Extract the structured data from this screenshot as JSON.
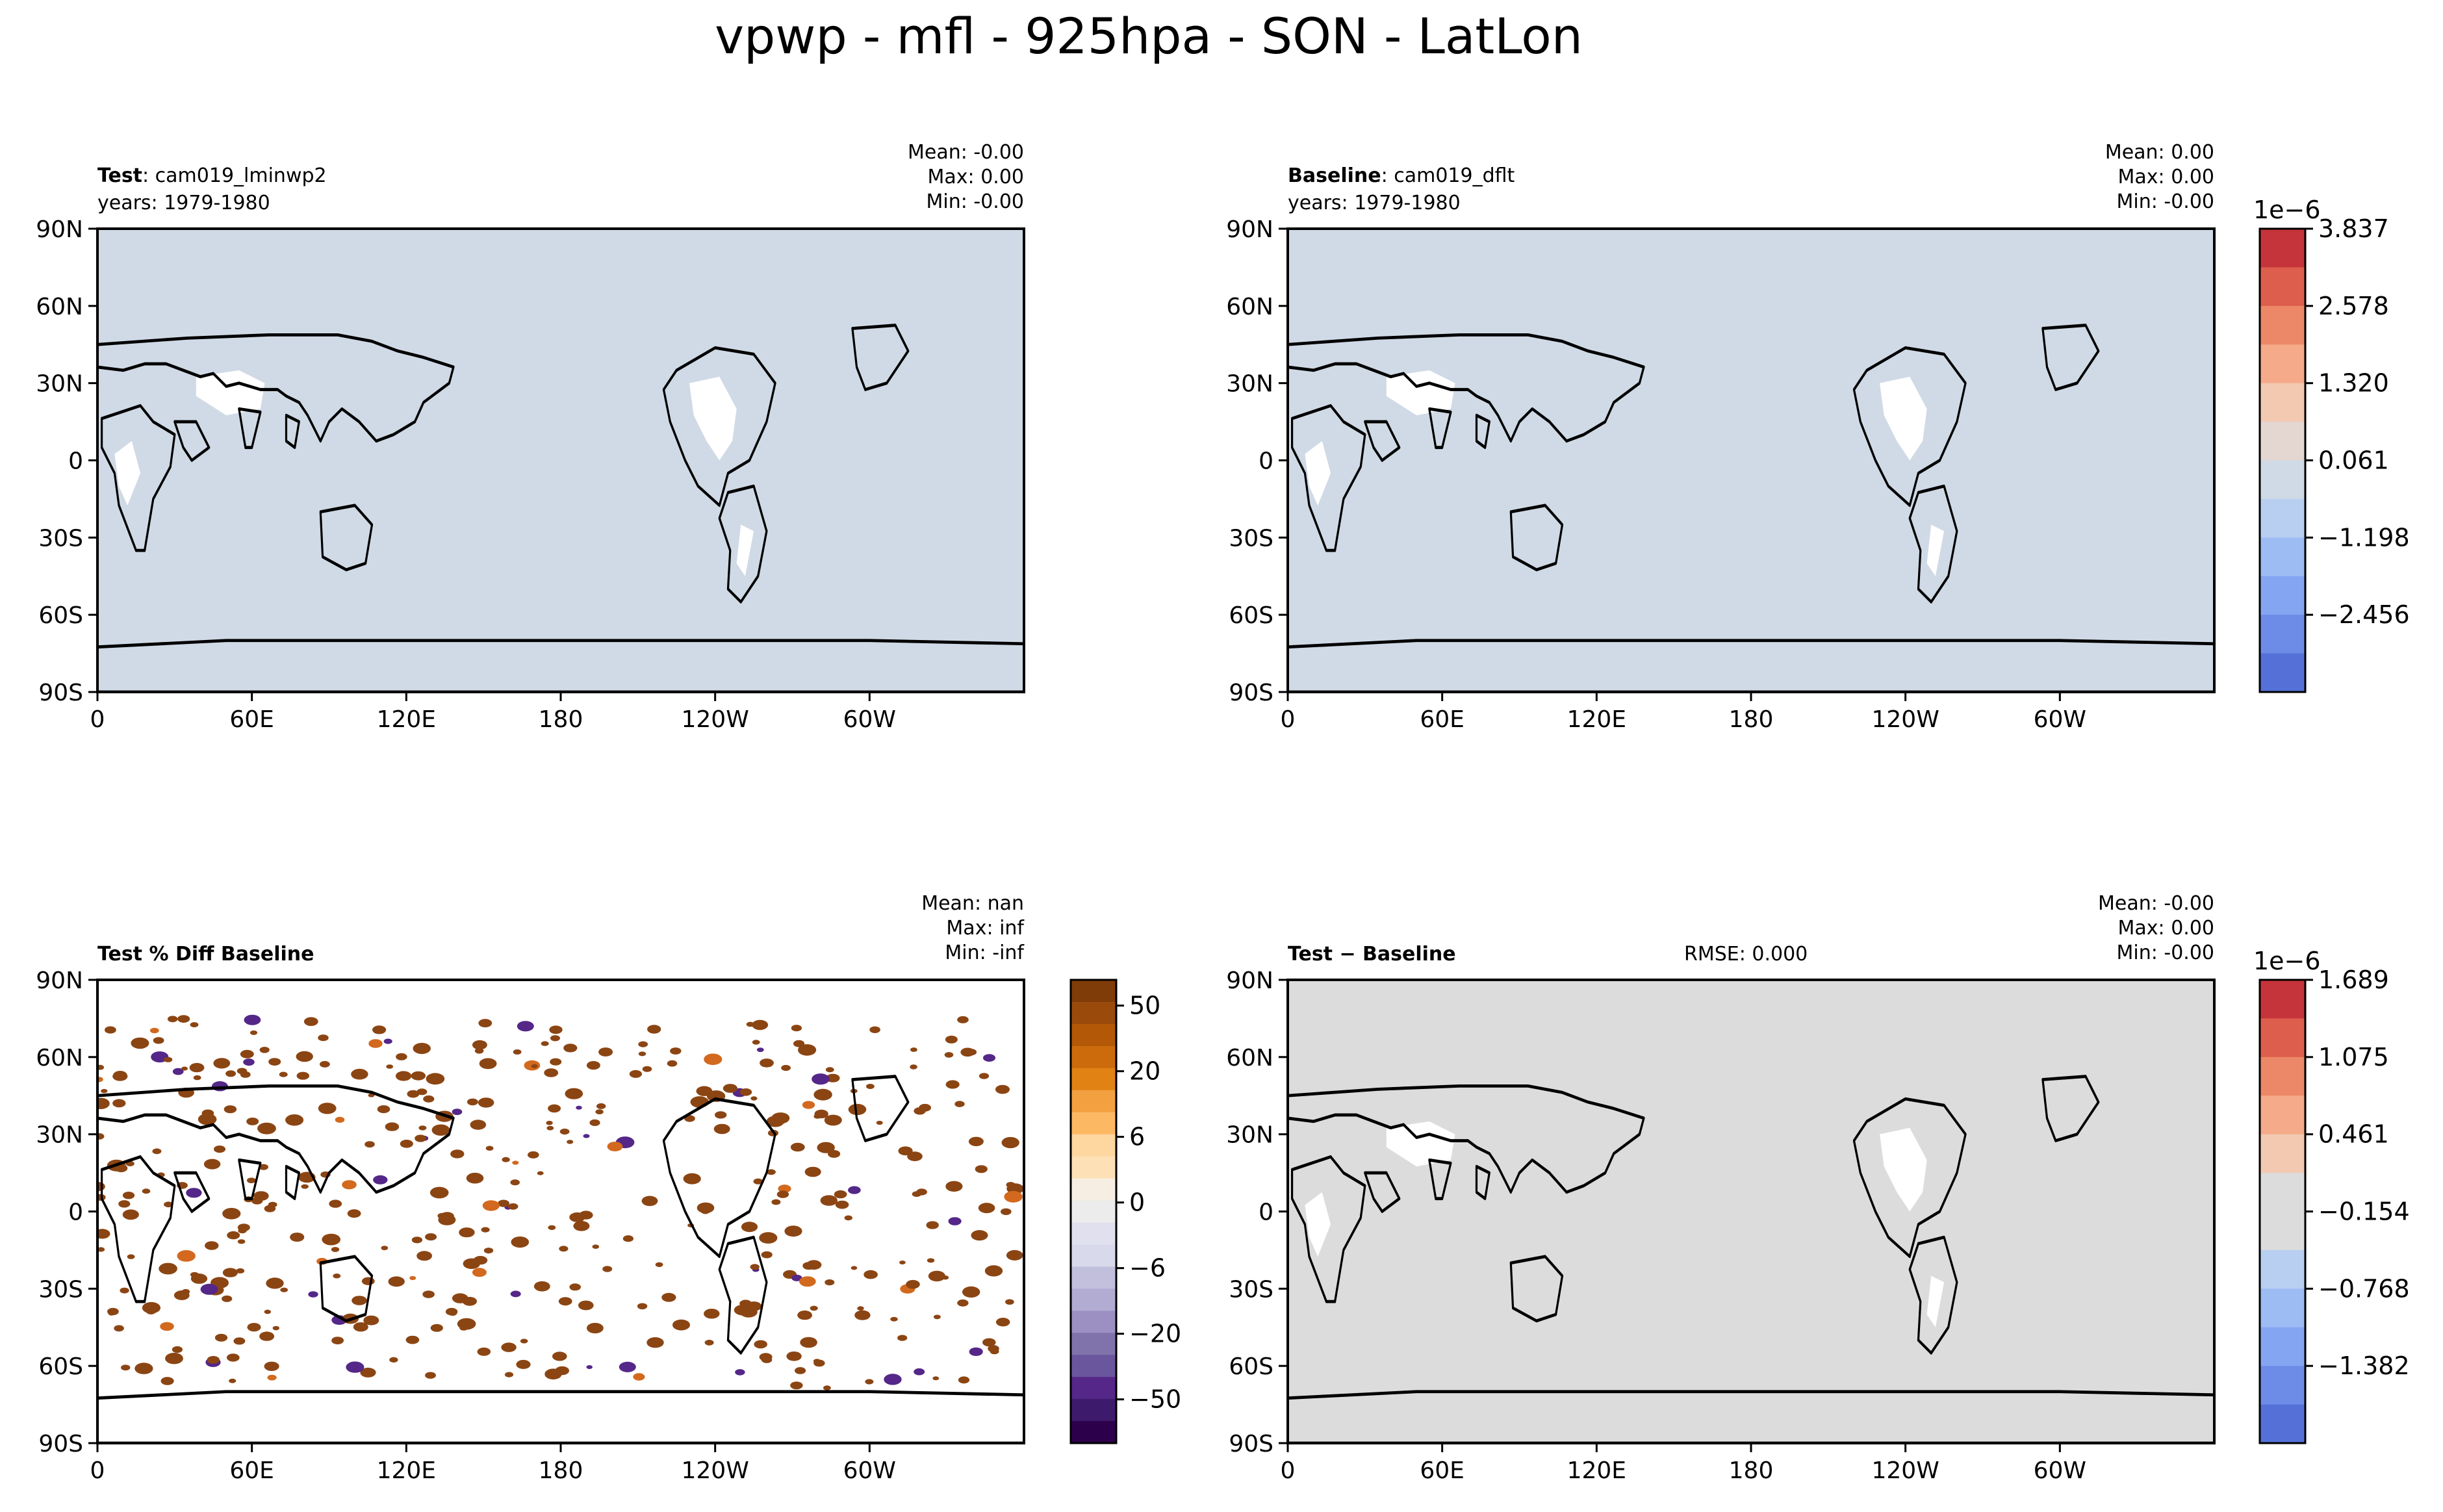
{
  "figure_title": "vpwp - mfl - 925hpa - SON - LatLon",
  "colors": {
    "ocean_blue": "#d0dae6",
    "ocean_grey": "#dcdcdc",
    "land": "#ffffff",
    "coast": "#000000"
  },
  "chart_data": [
    {
      "type": "heatmap",
      "panel": "test",
      "title_bold": "Test",
      "title_rest": ": cam019_lminwp2",
      "years": "years: 1979-1980",
      "stats": {
        "mean": "Mean: -0.00",
        "max": "Max:  0.00",
        "min": "Min: -0.00"
      },
      "xlabel": "",
      "ylabel": "",
      "x_ticks": [
        "0",
        "60E",
        "120E",
        "180",
        "120W",
        "60W"
      ],
      "y_ticks": [
        "90N",
        "60N",
        "30N",
        "0",
        "30S",
        "60S",
        "90S"
      ],
      "xlim": [
        0,
        360
      ],
      "ylim": [
        -90,
        90
      ]
    },
    {
      "type": "heatmap",
      "panel": "baseline",
      "title_bold": "Baseline",
      "title_rest": ": cam019_dflt",
      "years": "years: 1979-1980",
      "stats": {
        "mean": "Mean:  0.00",
        "max": "Max:  0.00",
        "min": "Min: -0.00"
      },
      "xlabel": "",
      "ylabel": "",
      "x_ticks": [
        "0",
        "60E",
        "120E",
        "180",
        "120W",
        "60W"
      ],
      "y_ticks": [
        "90N",
        "60N",
        "30N",
        "0",
        "30S",
        "60S",
        "90S"
      ],
      "xlim": [
        0,
        360
      ],
      "ylim": [
        -90,
        90
      ],
      "colorbar": {
        "exponent": "1e−6",
        "tick_labels": [
          "3.837",
          "2.578",
          "1.320",
          "0.061",
          "−1.198",
          "−2.456"
        ],
        "colors": [
          "#c5343a",
          "#dd5e4d",
          "#ec8867",
          "#f5aa89",
          "#f3c9b2",
          "#e4d6d1",
          "#d0dae6",
          "#b9cff2",
          "#9dbcf4",
          "#84a6f2",
          "#6d8ce7",
          "#5571d8"
        ]
      }
    },
    {
      "type": "heatmap",
      "panel": "pctdiff",
      "title_bold": "Test % Diff Baseline",
      "stats": {
        "mean": "Mean:   nan",
        "max": "Max:   inf",
        "min": "Min:  -inf"
      },
      "xlabel": "",
      "ylabel": "",
      "x_ticks": [
        "0",
        "60E",
        "120E",
        "180",
        "120W",
        "60W"
      ],
      "y_ticks": [
        "90N",
        "60N",
        "30N",
        "0",
        "30S",
        "60S",
        "90S"
      ],
      "xlim": [
        0,
        360
      ],
      "ylim": [
        -90,
        90
      ],
      "colorbar": {
        "tick_labels": [
          "50",
          "20",
          "6",
          "0",
          "−6",
          "−20",
          "−50"
        ],
        "colors": [
          "#7f3b08",
          "#9a4a0b",
          "#b35806",
          "#cc6b0c",
          "#e08214",
          "#f2a040",
          "#fdb863",
          "#fdd6a0",
          "#fee0b6",
          "#f6eee2",
          "#ececec",
          "#e0e0ee",
          "#d8daeb",
          "#c2bfdd",
          "#b2abd2",
          "#9c8fc2",
          "#8073ac",
          "#6a569c",
          "#542788",
          "#3d1a6b",
          "#2d004b"
        ]
      }
    },
    {
      "type": "heatmap",
      "panel": "diff",
      "title_bold": "Test − Baseline",
      "rmse": "RMSE: 0.000",
      "stats": {
        "mean": "Mean: -0.00",
        "max": "Max:  0.00",
        "min": "Min: -0.00"
      },
      "xlabel": "",
      "ylabel": "",
      "x_ticks": [
        "0",
        "60E",
        "120E",
        "180",
        "120W",
        "60W"
      ],
      "y_ticks": [
        "90N",
        "60N",
        "30N",
        "0",
        "30S",
        "60S",
        "90S"
      ],
      "xlim": [
        0,
        360
      ],
      "ylim": [
        -90,
        90
      ],
      "colorbar": {
        "exponent": "1e−6",
        "tick_labels": [
          "1.689",
          "1.075",
          "0.461",
          "−0.154",
          "−0.768",
          "−1.382"
        ],
        "colors": [
          "#c5343a",
          "#dd5e4d",
          "#ec8867",
          "#f5aa89",
          "#f3c9b2",
          "#dcdcdc",
          "#dcdcdc",
          "#b9cff2",
          "#9dbcf4",
          "#84a6f2",
          "#6d8ce7",
          "#5571d8"
        ]
      }
    }
  ]
}
